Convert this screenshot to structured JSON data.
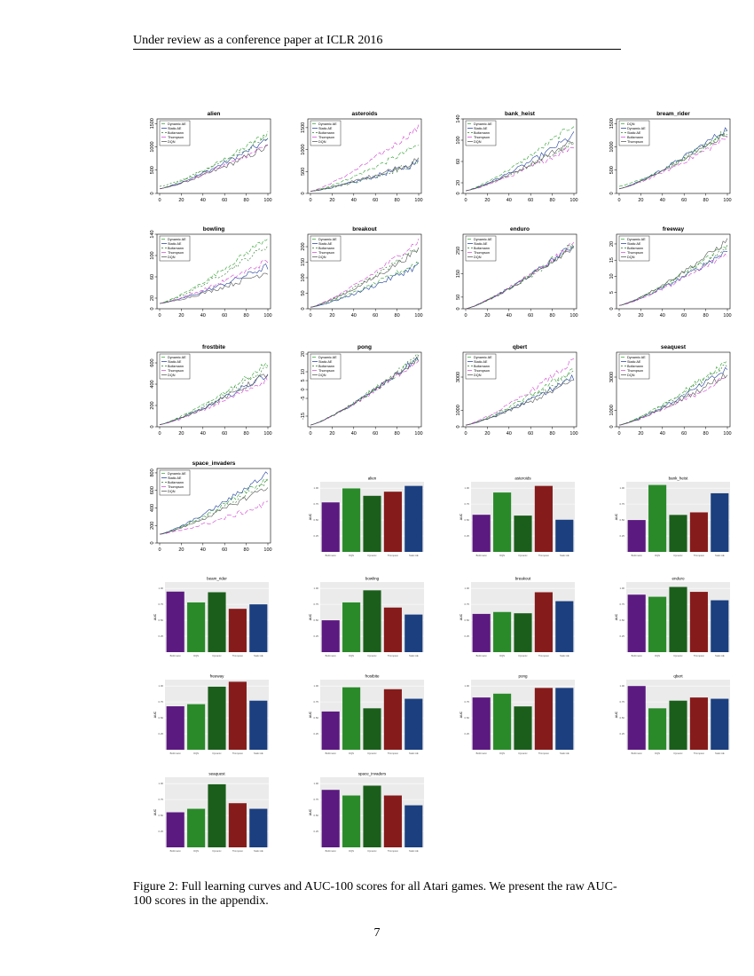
{
  "header": "Under review as a conference paper at ICLR 2016",
  "caption": "Figure 2: Full learning curves and AUC-100 scores for all Atari games. We present the raw AUC-100 scores in the appendix.",
  "page_number": "7",
  "colors": {
    "dynamic_ae": "#2ca02c",
    "static_ae": "#1f3f9f",
    "boltzmann": "#2a7a2a",
    "thompson": "#d040d0",
    "dqn": "#555555",
    "bar_colors": [
      "#5b1a80",
      "#2a8a2a",
      "#1b5e1b",
      "#861b1b",
      "#1b3f7f"
    ]
  },
  "chart_data": [
    {
      "type": "line",
      "title": "alien",
      "legend": [
        "Dynamic AE",
        "Static AE",
        "Boltzmann",
        "Thompson",
        "DQN"
      ],
      "x": [
        0,
        20,
        40,
        60,
        80,
        100
      ],
      "xticks": [
        "0",
        "20",
        "40",
        "60",
        "80",
        "100"
      ],
      "yticks": [
        "0",
        "500",
        "1000",
        "1500"
      ],
      "ylim": [
        0,
        1600
      ],
      "end": [
        1300,
        1150,
        1200,
        1050,
        1000
      ],
      "start": [
        100,
        100,
        150,
        100,
        100
      ]
    },
    {
      "type": "line",
      "title": "asteroids",
      "legend": [
        "Dynamic AE",
        "Static AE",
        "Boltzmann",
        "Thompson",
        "DQN"
      ],
      "x": [
        0,
        20,
        40,
        60,
        80,
        100
      ],
      "xticks": [
        "0",
        "20",
        "40",
        "60",
        "80",
        "100"
      ],
      "yticks": [
        "0",
        "500",
        "1000",
        "1500"
      ],
      "ylim": [
        0,
        1700
      ],
      "end": [
        1100,
        700,
        700,
        1500,
        750
      ],
      "start": [
        50,
        50,
        50,
        50,
        50
      ]
    },
    {
      "type": "line",
      "title": "bank_heist",
      "legend": [
        "Dynamic AE",
        "Static AE",
        "Boltzmann",
        "Thompson",
        "DQN"
      ],
      "x": [
        0,
        20,
        40,
        60,
        80,
        100
      ],
      "xticks": [
        "0",
        "20",
        "40",
        "60",
        "80",
        "100"
      ],
      "yticks": [
        "0",
        "20",
        "60",
        "100",
        "140"
      ],
      "ylim": [
        0,
        140
      ],
      "end": [
        130,
        110,
        95,
        90,
        100
      ],
      "start": [
        5,
        5,
        5,
        5,
        5
      ]
    },
    {
      "type": "line",
      "title": "bream_rider",
      "legend": [
        "DQN",
        "Dynamic AE",
        "Static AE",
        "Boltzmann",
        "Thompson"
      ],
      "x": [
        0,
        20,
        40,
        60,
        80,
        100
      ],
      "xticks": [
        "0",
        "20",
        "40",
        "60",
        "80",
        "100"
      ],
      "yticks": [
        "0",
        "500",
        "1000",
        "1500"
      ],
      "ylim": [
        0,
        1600
      ],
      "end": [
        1300,
        1400,
        1350,
        1200,
        1300
      ],
      "start": [
        150,
        100,
        100,
        100,
        100
      ]
    },
    {
      "type": "line",
      "title": "bowling",
      "legend": [
        "Dynamic AE",
        "Static AE",
        "Boltzmann",
        "Thompson",
        "DQN"
      ],
      "x": [
        0,
        20,
        40,
        60,
        80,
        100
      ],
      "xticks": [
        "0",
        "20",
        "40",
        "60",
        "80",
        "100"
      ],
      "yticks": [
        "0",
        "20",
        "60",
        "100",
        "140"
      ],
      "ylim": [
        0,
        140
      ],
      "end": [
        135,
        80,
        120,
        90,
        70
      ],
      "start": [
        10,
        10,
        10,
        10,
        10
      ]
    },
    {
      "type": "line",
      "title": "breakout",
      "legend": [
        "Dynamic AE",
        "Static AE",
        "Boltzmann",
        "Thompson",
        "DQN"
      ],
      "x": [
        0,
        20,
        40,
        60,
        80,
        100
      ],
      "xticks": [
        "0",
        "20",
        "40",
        "60",
        "80",
        "100"
      ],
      "yticks": [
        "0",
        "50",
        "100",
        "150",
        "200"
      ],
      "ylim": [
        0,
        240
      ],
      "end": [
        150,
        140,
        200,
        220,
        190
      ],
      "start": [
        5,
        5,
        5,
        5,
        5
      ]
    },
    {
      "type": "line",
      "title": "enduro",
      "legend": [
        "Dynamic AE",
        "Static AE",
        "Boltzmann",
        "Thompson",
        "DQN"
      ],
      "x": [
        0,
        20,
        40,
        60,
        80,
        100
      ],
      "xticks": [
        "0",
        "20",
        "40",
        "60",
        "80",
        "100"
      ],
      "yticks": [
        "0",
        "50",
        "150",
        "250"
      ],
      "ylim": [
        0,
        320
      ],
      "end": [
        280,
        275,
        270,
        280,
        270
      ],
      "start": [
        0,
        0,
        0,
        0,
        0
      ]
    },
    {
      "type": "line",
      "title": "freeway",
      "legend": [
        "Dynamic AE",
        "Static AE",
        "Boltzmann",
        "Thompson",
        "DQN"
      ],
      "x": [
        0,
        20,
        40,
        60,
        80,
        100
      ],
      "xticks": [
        "0",
        "20",
        "40",
        "60",
        "80",
        "100"
      ],
      "yticks": [
        "0",
        "5",
        "10",
        "15",
        "20"
      ],
      "ylim": [
        0,
        23
      ],
      "end": [
        20,
        18,
        19,
        17,
        21
      ],
      "start": [
        1,
        1,
        1,
        1,
        1
      ]
    },
    {
      "type": "line",
      "title": "frostbite",
      "legend": [
        "Dynamic AE",
        "Static AE",
        "Boltzmann",
        "Thompson",
        "DQN"
      ],
      "x": [
        0,
        20,
        40,
        60,
        80,
        100
      ],
      "xticks": [
        "0",
        "20",
        "40",
        "60",
        "80",
        "100"
      ],
      "yticks": [
        "0",
        "200",
        "400",
        "600"
      ],
      "ylim": [
        0,
        700
      ],
      "end": [
        600,
        500,
        550,
        450,
        500
      ],
      "start": [
        20,
        20,
        20,
        20,
        20
      ]
    },
    {
      "type": "line",
      "title": "pong",
      "legend": [
        "Dynamic AE",
        "Static AE",
        "Boltzmann",
        "Thompson",
        "DQN"
      ],
      "x": [
        0,
        20,
        40,
        60,
        80,
        100
      ],
      "xticks": [
        "0",
        "20",
        "40",
        "60",
        "80",
        "100"
      ],
      "yticks": [
        "-15",
        "-5",
        "0",
        "5",
        "10",
        "20"
      ],
      "ylim": [
        -21,
        21
      ],
      "end": [
        18,
        18,
        19,
        17,
        18
      ],
      "start": [
        -20,
        -20,
        -20,
        -20,
        -20
      ]
    },
    {
      "type": "line",
      "title": "qbert",
      "legend": [
        "Dynamic AE",
        "Static AE",
        "Boltzmann",
        "Thompson",
        "DQN"
      ],
      "x": [
        0,
        20,
        40,
        60,
        80,
        100
      ],
      "xticks": [
        "0",
        "20",
        "40",
        "60",
        "80",
        "100"
      ],
      "yticks": [
        "0",
        "1000",
        "3000"
      ],
      "ylim": [
        0,
        4500
      ],
      "end": [
        3500,
        3000,
        3200,
        4000,
        2800
      ],
      "start": [
        100,
        100,
        100,
        100,
        100
      ]
    },
    {
      "type": "line",
      "title": "seaquest",
      "legend": [
        "Dynamic AE",
        "Static AE",
        "Boltzmann",
        "Thompson",
        "DQN"
      ],
      "x": [
        0,
        20,
        40,
        60,
        80,
        100
      ],
      "xticks": [
        "0",
        "20",
        "40",
        "60",
        "80",
        "100"
      ],
      "yticks": [
        "0",
        "1000",
        "3000"
      ],
      "ylim": [
        0,
        4500
      ],
      "end": [
        4000,
        3500,
        3800,
        3000,
        3200
      ],
      "start": [
        100,
        100,
        100,
        100,
        100
      ]
    },
    {
      "type": "line",
      "title": "space_invaders",
      "legend": [
        "Dynamic AE",
        "Static AE",
        "Boltzmann",
        "Thompson",
        "DQN"
      ],
      "x": [
        0,
        20,
        40,
        60,
        80,
        100
      ],
      "xticks": [
        "0",
        "20",
        "40",
        "60",
        "80",
        "100"
      ],
      "yticks": [
        "0",
        "200",
        "400",
        "600",
        "800"
      ],
      "ylim": [
        0,
        850
      ],
      "end": [
        750,
        800,
        700,
        450,
        650
      ],
      "start": [
        100,
        100,
        100,
        100,
        100
      ]
    },
    {
      "type": "bar",
      "title": "alien",
      "ylabel": "AUC",
      "categories": [
        "Boltzmann",
        "DQN",
        "Dynamic",
        "Thompson",
        "Static AE"
      ],
      "values": [
        0.6,
        0.77,
        0.68,
        0.73,
        0.8
      ],
      "ylim": [
        0,
        0.85
      ]
    },
    {
      "type": "bar",
      "title": "asteroids",
      "ylabel": "AUC",
      "categories": [
        "Boltzmann",
        "DQN",
        "Dynamic",
        "Thompson",
        "Static AE"
      ],
      "values": [
        0.45,
        0.72,
        0.44,
        0.8,
        0.39
      ],
      "ylim": [
        0,
        0.85
      ]
    },
    {
      "type": "bar",
      "title": "bank_heist",
      "ylabel": "AUC",
      "categories": [
        "Boltzmann",
        "DQN",
        "Dynamic",
        "Thompson",
        "Static AE"
      ],
      "values": [
        0.5,
        1.05,
        0.58,
        0.62,
        0.92
      ],
      "ylim": [
        0,
        1.1
      ]
    },
    {
      "type": "bar",
      "title": "beam_rider",
      "ylabel": "AUC",
      "categories": [
        "Boltzmann",
        "DQN",
        "Dynamic",
        "Thompson",
        "Static AE"
      ],
      "values": [
        0.95,
        0.78,
        0.94,
        0.68,
        0.75
      ],
      "ylim": [
        0,
        1.1
      ]
    },
    {
      "type": "bar",
      "title": "bowling",
      "ylabel": "AUC",
      "categories": [
        "Boltzmann",
        "DQN",
        "Dynamic",
        "Thompson",
        "Static AE"
      ],
      "values": [
        0.5,
        0.78,
        0.97,
        0.7,
        0.59
      ],
      "ylim": [
        0,
        1.1
      ]
    },
    {
      "type": "bar",
      "title": "breakout",
      "ylabel": "AUC",
      "categories": [
        "Boltzmann",
        "DQN",
        "Dynamic",
        "Thompson",
        "Static AE"
      ],
      "values": [
        0.6,
        0.63,
        0.61,
        0.94,
        0.8
      ],
      "ylim": [
        0,
        1.1
      ]
    },
    {
      "type": "bar",
      "title": "enduro",
      "ylabel": "AUC",
      "categories": [
        "Boltzmann",
        "DQN",
        "Dynamic",
        "Thompson",
        "Static AE"
      ],
      "values": [
        0.82,
        0.79,
        0.93,
        0.86,
        0.74
      ],
      "ylim": [
        0,
        1.0
      ]
    },
    {
      "type": "bar",
      "title": "freeway",
      "ylabel": "AUC",
      "categories": [
        "Boltzmann",
        "DQN",
        "Dynamic",
        "Thompson",
        "Static AE"
      ],
      "values": [
        0.62,
        0.65,
        0.9,
        0.97,
        0.7
      ],
      "ylim": [
        0,
        1.0
      ]
    },
    {
      "type": "bar",
      "title": "frostbite",
      "ylabel": "AUC",
      "categories": [
        "Boltzmann",
        "DQN",
        "Dynamic",
        "Thompson",
        "Static AE"
      ],
      "values": [
        0.6,
        0.98,
        0.65,
        0.95,
        0.8
      ],
      "ylim": [
        0,
        1.1
      ]
    },
    {
      "type": "bar",
      "title": "pong",
      "ylabel": "AUC",
      "categories": [
        "Boltzmann",
        "DQN",
        "Dynamic",
        "Thompson",
        "Static AE"
      ],
      "values": [
        0.82,
        0.88,
        0.68,
        0.97,
        0.97
      ],
      "ylim": [
        0,
        1.1
      ]
    },
    {
      "type": "bar",
      "title": "qbert",
      "ylabel": "AUC",
      "categories": [
        "Boltzmann",
        "DQN",
        "Dynamic",
        "Thompson",
        "Static AE"
      ],
      "values": [
        1.0,
        0.65,
        0.77,
        0.82,
        0.8
      ],
      "ylim": [
        0,
        1.1
      ]
    },
    {
      "type": "bar",
      "title": "seaquest",
      "ylabel": "AUC",
      "categories": [
        "Boltzmann",
        "DQN",
        "Dynamic",
        "Thompson",
        "Static AE"
      ],
      "values": [
        0.5,
        0.55,
        0.9,
        0.63,
        0.55
      ],
      "ylim": [
        0,
        1.0
      ]
    },
    {
      "type": "bar",
      "title": "space_invaders",
      "ylabel": "AUC",
      "categories": [
        "Boltzmann",
        "DQN",
        "Dynamic",
        "Thompson",
        "Static AE"
      ],
      "values": [
        0.82,
        0.74,
        0.88,
        0.74,
        0.6
      ],
      "ylim": [
        0,
        1.0
      ]
    }
  ]
}
